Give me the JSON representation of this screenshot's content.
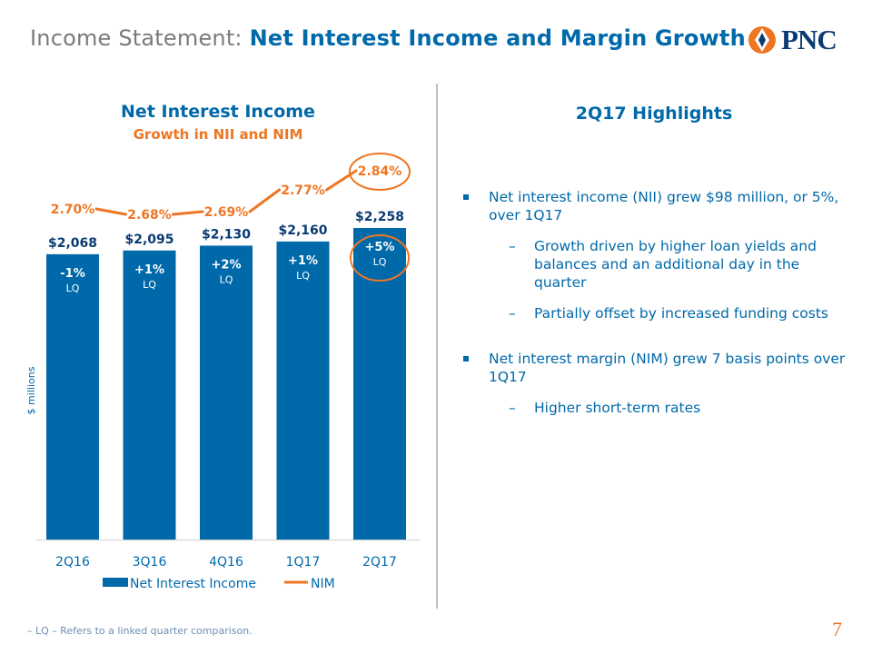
{
  "header": {
    "title_prefix": "Income Statement:",
    "title_main": "Net Interest Income and Margin Growth",
    "logo_text": "PNC"
  },
  "colors": {
    "brand_blue": "#0069aa",
    "accent_orange": "#ee7623",
    "text_gray": "#7a7a7a"
  },
  "left": {
    "title": "Net Interest Income",
    "subtitle": "Growth in NII and NIM"
  },
  "chart_data": {
    "type": "bar",
    "categories": [
      "2Q16",
      "3Q16",
      "4Q16",
      "1Q17",
      "2Q17"
    ],
    "ylabel": "$ millions",
    "ylim": [
      0,
      2258
    ],
    "grid": false,
    "legend_placement": "bottom",
    "series": [
      {
        "name": "Net Interest Income",
        "kind": "bar",
        "values": [
          2068,
          2095,
          2130,
          2160,
          2258
        ],
        "value_labels": [
          "$2,068",
          "$2,095",
          "$2,130",
          "$2,160",
          "$2,258"
        ],
        "change_labels": [
          "-1%",
          "+1%",
          "+2%",
          "+1%",
          "+5%"
        ],
        "change_suffix": "LQ",
        "color": "#0069aa"
      },
      {
        "name": "NIM",
        "kind": "line",
        "values": [
          2.7,
          2.68,
          2.69,
          2.77,
          2.84
        ],
        "value_labels": [
          "2.70%",
          "2.68%",
          "2.69%",
          "2.77%",
          "2.84%"
        ],
        "color": "#ee7623"
      }
    ],
    "annotations": [
      "circled 2Q17 NIM 2.84%",
      "circled 2Q17 change +5% LQ"
    ]
  },
  "highlights": {
    "title": "2Q17 Highlights",
    "items": [
      {
        "text": "Net interest income (NII) grew $98 million, or 5%, over 1Q17",
        "sub": [
          "Growth driven by higher loan yields and balances and an additional day in the quarter",
          "Partially offset by increased funding costs"
        ]
      },
      {
        "text": "Net interest margin (NIM) grew 7 basis points over 1Q17",
        "sub": [
          "Higher short-term rates"
        ]
      }
    ]
  },
  "footer": {
    "sub_dash": "–",
    "footnote": "– LQ – Refers to a linked quarter comparison.",
    "page_number": "7"
  }
}
